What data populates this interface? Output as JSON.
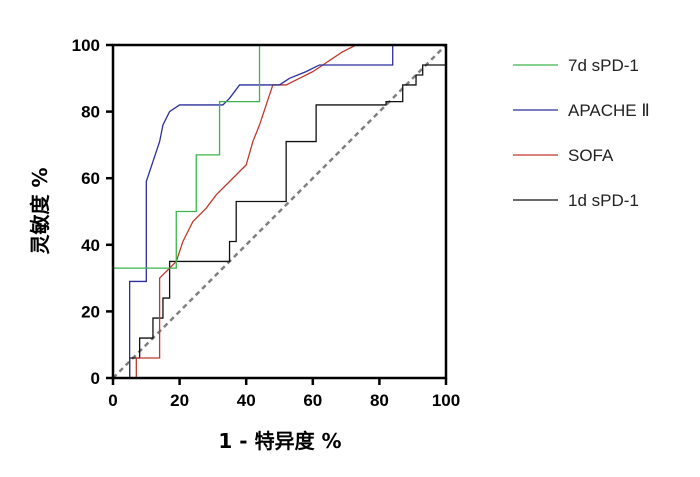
{
  "chart_data": {
    "type": "line",
    "xlabel": "1 - 特异度 %",
    "ylabel": "灵敏度 %",
    "xlim": [
      0,
      100
    ],
    "ylim": [
      0,
      100
    ],
    "xticks": [
      0,
      20,
      40,
      60,
      80,
      100
    ],
    "yticks": [
      0,
      20,
      40,
      60,
      80,
      100
    ],
    "grid": false,
    "legend_position": "right",
    "reference_line": {
      "style": "dashed",
      "color": "#808080",
      "points": [
        [
          0,
          0
        ],
        [
          100,
          100
        ]
      ]
    },
    "series": [
      {
        "name": "7d sPD-1",
        "color": "#3cb44b",
        "points": [
          [
            0,
            0
          ],
          [
            0,
            33
          ],
          [
            12,
            33
          ],
          [
            12,
            33
          ],
          [
            19,
            33
          ],
          [
            19,
            50
          ],
          [
            25,
            50
          ],
          [
            25,
            67
          ],
          [
            32,
            67
          ],
          [
            32,
            83
          ],
          [
            44,
            83
          ],
          [
            44,
            100
          ],
          [
            100,
            100
          ]
        ]
      },
      {
        "name": "APACHE Ⅱ",
        "color": "#2a2f9e",
        "points": [
          [
            5,
            0
          ],
          [
            5,
            29
          ],
          [
            10,
            29
          ],
          [
            10,
            59
          ],
          [
            12,
            65
          ],
          [
            14,
            71
          ],
          [
            15,
            76
          ],
          [
            17,
            80
          ],
          [
            20,
            82
          ],
          [
            27,
            82
          ],
          [
            33,
            82
          ],
          [
            35,
            84
          ],
          [
            38,
            88
          ],
          [
            50,
            88
          ],
          [
            53,
            90
          ],
          [
            58,
            92
          ],
          [
            62,
            94
          ],
          [
            70,
            94
          ],
          [
            84,
            94
          ],
          [
            84,
            100
          ],
          [
            100,
            100
          ]
        ]
      },
      {
        "name": "SOFA",
        "color": "#c0392b",
        "points": [
          [
            7,
            0
          ],
          [
            7,
            6
          ],
          [
            14,
            6
          ],
          [
            14,
            30
          ],
          [
            17,
            33
          ],
          [
            19,
            35
          ],
          [
            21,
            41
          ],
          [
            24,
            47
          ],
          [
            28,
            51
          ],
          [
            31,
            55
          ],
          [
            34,
            58
          ],
          [
            37,
            61
          ],
          [
            40,
            64
          ],
          [
            42,
            71
          ],
          [
            44,
            76
          ],
          [
            46,
            82
          ],
          [
            48,
            88
          ],
          [
            52,
            88
          ],
          [
            56,
            90
          ],
          [
            60,
            92
          ],
          [
            63,
            94
          ],
          [
            66,
            96
          ],
          [
            69,
            98
          ],
          [
            73,
            100
          ],
          [
            100,
            100
          ]
        ]
      },
      {
        "name": "1d sPD-1",
        "color": "#111111",
        "points": [
          [
            0,
            0
          ],
          [
            5,
            0
          ],
          [
            5,
            6
          ],
          [
            8,
            6
          ],
          [
            8,
            12
          ],
          [
            12,
            12
          ],
          [
            12,
            18
          ],
          [
            15,
            18
          ],
          [
            15,
            24
          ],
          [
            17,
            24
          ],
          [
            17,
            35
          ],
          [
            23,
            35
          ],
          [
            35,
            35
          ],
          [
            35,
            41
          ],
          [
            37,
            41
          ],
          [
            37,
            53
          ],
          [
            52,
            53
          ],
          [
            52,
            71
          ],
          [
            61,
            71
          ],
          [
            61,
            82
          ],
          [
            77,
            82
          ],
          [
            82,
            82
          ],
          [
            82,
            83
          ],
          [
            87,
            83
          ],
          [
            87,
            88
          ],
          [
            91,
            88
          ],
          [
            91,
            91
          ],
          [
            93,
            91
          ],
          [
            93,
            94
          ],
          [
            100,
            94
          ]
        ]
      }
    ]
  }
}
